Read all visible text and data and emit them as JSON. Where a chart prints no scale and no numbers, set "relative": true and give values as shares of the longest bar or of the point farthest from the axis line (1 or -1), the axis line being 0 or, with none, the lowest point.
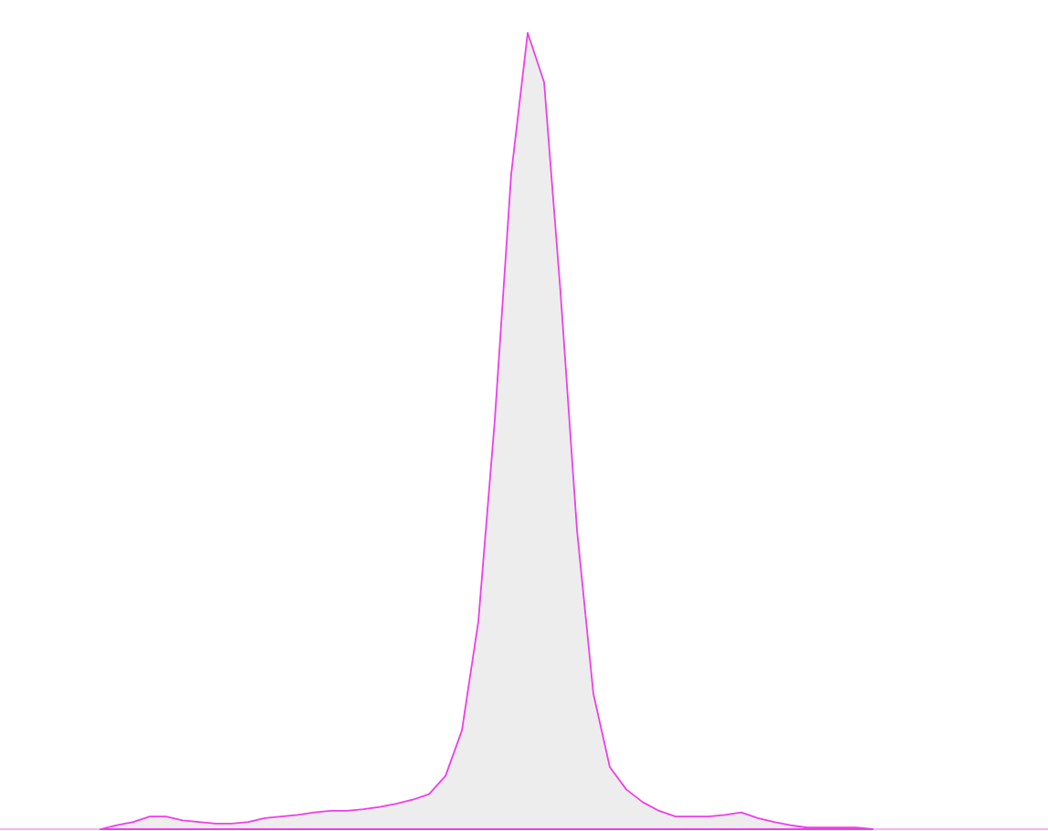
{
  "chart_data": {
    "type": "area",
    "relative": true,
    "color": "#ee3ee8",
    "categories": [
      null,
      null,
      null,
      null,
      null,
      null,
      null,
      null,
      null,
      null,
      null,
      null,
      null,
      null,
      null,
      null,
      null,
      null,
      null,
      null,
      null,
      null,
      null,
      null,
      null,
      null,
      null,
      null,
      null,
      null,
      null,
      null,
      null,
      null,
      null,
      null,
      null,
      null,
      null,
      null,
      null,
      null,
      null,
      null,
      null,
      null,
      null,
      null
    ],
    "values": [
      0,
      0.005,
      0.009,
      0.016,
      0.016,
      0.011,
      0.009,
      0.007,
      0.007,
      0.009,
      0.014,
      0.016,
      0.018,
      0.021,
      0.023,
      0.023,
      0.025,
      0.028,
      0.032,
      0.037,
      0.044,
      0.067,
      0.124,
      0.261,
      0.514,
      0.823,
      1,
      0.938,
      0.674,
      0.376,
      0.17,
      0.078,
      0.05,
      0.034,
      0.023,
      0.016,
      0.016,
      0.016,
      0.018,
      0.021,
      0.014,
      0.009,
      0.005,
      0.002,
      0.002,
      0.002,
      0.002,
      0
    ]
  }
}
